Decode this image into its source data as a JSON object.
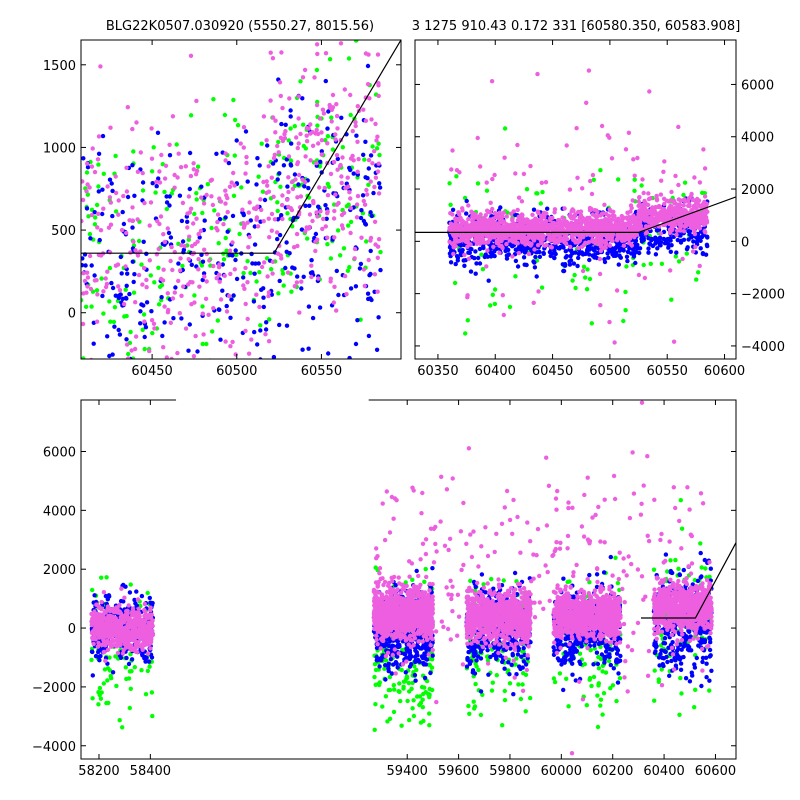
{
  "figure": {
    "title_left": "BLG22K0507.030920 (5550.27, 8015.56)",
    "title_right": "3 1275 910.43 0.172 331 [60580.350, 60583.908]",
    "colors": {
      "g": "#00ff00",
      "b": "#0000ff",
      "p": "#ee5fe0",
      "model": "#000000"
    }
  },
  "chart_data": [
    {
      "id": "top-left",
      "type": "scatter",
      "title": "BLG22K0507.030920 (5550.27, 8015.56)",
      "xlim": [
        60408,
        60597
      ],
      "ylim": [
        -280,
        1650
      ],
      "xticks": [
        60450,
        60500,
        60550
      ],
      "yticks": [
        0,
        500,
        1000,
        1500
      ],
      "ytick_side": "left",
      "series": [
        {
          "color": "#00ff00",
          "clusters": [
            {
              "x": [
                60408,
                60520
              ],
              "y_mean": 380,
              "y_sd": 420,
              "n": 150,
              "seed": 11
            },
            {
              "x": [
                60520,
                60585
              ],
              "y_mean": 720,
              "y_sd": 420,
              "n": 110,
              "seed": 12
            }
          ]
        },
        {
          "color": "#0000ff",
          "clusters": [
            {
              "x": [
                60408,
                60520
              ],
              "y_mean": 250,
              "y_sd": 380,
              "n": 230,
              "seed": 13
            },
            {
              "x": [
                60520,
                60585
              ],
              "y_mean": 600,
              "y_sd": 420,
              "n": 160,
              "seed": 14
            }
          ]
        },
        {
          "color": "#ee5fe0",
          "clusters": [
            {
              "x": [
                60408,
                60520
              ],
              "y_mean": 430,
              "y_sd": 380,
              "n": 300,
              "seed": 15
            },
            {
              "x": [
                60520,
                60585
              ],
              "y_mean": 850,
              "y_sd": 400,
              "n": 240,
              "seed": 16
            }
          ]
        }
      ],
      "model": {
        "x": [
          60408,
          60522,
          60597
        ],
        "y": [
          360,
          360,
          1650
        ]
      }
    },
    {
      "id": "top-right",
      "type": "scatter",
      "title": "3 1275 910.43 0.172 331 [60580.350, 60583.908]",
      "xlim": [
        60330,
        60610
      ],
      "ylim": [
        -4500,
        7700
      ],
      "xticks": [
        60350,
        60400,
        60450,
        60500,
        60550,
        60600
      ],
      "yticks": [
        -4000,
        -2000,
        0,
        2000,
        4000,
        6000
      ],
      "ytick_side": "right",
      "series": [
        {
          "color": "#00ff00",
          "clusters": [
            {
              "x": [
                60360,
                60585
              ],
              "y_mean": 0,
              "y_sd": 1500,
              "n": 120,
              "seed": 21
            }
          ]
        },
        {
          "color": "#0000ff",
          "clusters": [
            {
              "x": [
                60360,
                60525
              ],
              "y_mean": 100,
              "y_sd": 450,
              "n": 800,
              "seed": 22
            },
            {
              "x": [
                60525,
                60585
              ],
              "y_mean": 500,
              "y_sd": 450,
              "n": 200,
              "seed": 23
            }
          ]
        },
        {
          "color": "#ee5fe0",
          "clusters": [
            {
              "x": [
                60360,
                60525
              ],
              "y_mean": 450,
              "y_sd": 300,
              "n": 1200,
              "seed": 24
            },
            {
              "x": [
                60525,
                60585
              ],
              "y_mean": 1000,
              "y_sd": 300,
              "n": 400,
              "seed": 25
            },
            {
              "x": [
                60360,
                60585
              ],
              "y_mean": 1500,
              "y_sd": 2200,
              "n": 120,
              "seed": 26
            }
          ]
        }
      ],
      "model": {
        "x": [
          60330,
          60525,
          60610
        ],
        "y": [
          340,
          340,
          1700
        ]
      }
    },
    {
      "id": "bottom",
      "type": "scatter",
      "xlim": [
        58130,
        60680
      ],
      "ylim": [
        -4450,
        7750
      ],
      "xticks": [
        58200,
        58400,
        59400,
        59600,
        59800,
        60000,
        60200,
        60400,
        60600
      ],
      "yticks": [
        -4000,
        -2000,
        0,
        2000,
        4000,
        6000
      ],
      "ytick_side": "left",
      "break_x": [
        58500,
        59250
      ],
      "series": [
        {
          "color": "#00ff00",
          "clusters": [
            {
              "x": [
                58170,
                58410
              ],
              "y_mean": -800,
              "y_sd": 1200,
              "n": 90,
              "seed": 31
            },
            {
              "x": [
                59270,
                59500
              ],
              "y_mean": -1000,
              "y_sd": 1300,
              "n": 200,
              "seed": 32
            },
            {
              "x": [
                59630,
                59880
              ],
              "y_mean": -600,
              "y_sd": 1200,
              "n": 120,
              "seed": 33
            },
            {
              "x": [
                59970,
                60230
              ],
              "y_mean": -500,
              "y_sd": 1200,
              "n": 120,
              "seed": 34
            },
            {
              "x": [
                60360,
                60585
              ],
              "y_mean": 0,
              "y_sd": 1600,
              "n": 90,
              "seed": 35
            }
          ]
        },
        {
          "color": "#0000ff",
          "clusters": [
            {
              "x": [
                58170,
                58410
              ],
              "y_mean": -100,
              "y_sd": 600,
              "n": 300,
              "seed": 41
            },
            {
              "x": [
                59270,
                59500
              ],
              "y_mean": -100,
              "y_sd": 700,
              "n": 500,
              "seed": 42
            },
            {
              "x": [
                59630,
                59880
              ],
              "y_mean": 0,
              "y_sd": 700,
              "n": 400,
              "seed": 43
            },
            {
              "x": [
                59970,
                60230
              ],
              "y_mean": 0,
              "y_sd": 700,
              "n": 400,
              "seed": 44
            },
            {
              "x": [
                60360,
                60585
              ],
              "y_mean": 200,
              "y_sd": 900,
              "n": 350,
              "seed": 45
            }
          ]
        },
        {
          "color": "#ee5fe0",
          "clusters": [
            {
              "x": [
                58170,
                58410
              ],
              "y_mean": 0,
              "y_sd": 350,
              "n": 600,
              "seed": 51
            },
            {
              "x": [
                59270,
                59500
              ],
              "y_mean": 450,
              "y_sd": 400,
              "n": 1000,
              "seed": 52
            },
            {
              "x": [
                59630,
                59880
              ],
              "y_mean": 400,
              "y_sd": 400,
              "n": 900,
              "seed": 53
            },
            {
              "x": [
                59970,
                60230
              ],
              "y_mean": 450,
              "y_sd": 400,
              "n": 900,
              "seed": 54
            },
            {
              "x": [
                60360,
                60585
              ],
              "y_mean": 700,
              "y_sd": 400,
              "n": 700,
              "seed": 55
            },
            {
              "x": [
                59270,
                60585
              ],
              "y_mean": 1800,
              "y_sd": 2000,
              "n": 300,
              "seed": 56
            }
          ]
        }
      ],
      "model": {
        "x": [
          60310,
          60522,
          60680
        ],
        "y": [
          340,
          340,
          2900
        ]
      }
    }
  ]
}
